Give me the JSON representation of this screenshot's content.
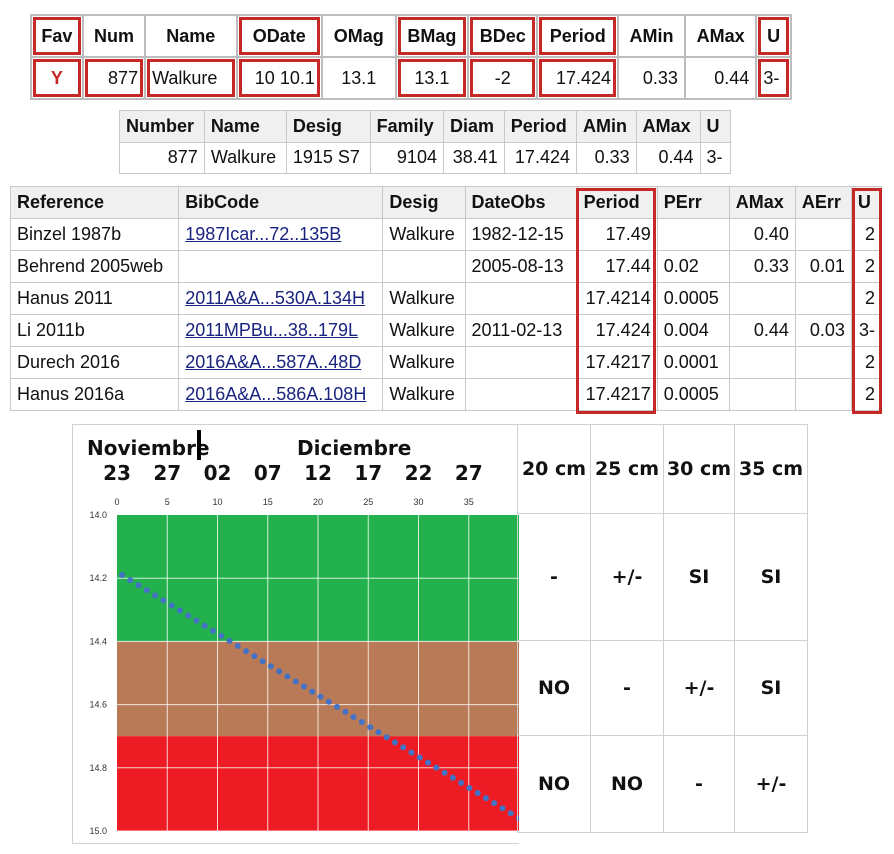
{
  "summary": {
    "headers": [
      "Fav",
      "Num",
      "Name",
      "ODate",
      "OMag",
      "BMag",
      "BDec",
      "Period",
      "AMin",
      "AMax",
      "U"
    ],
    "row": [
      "Y",
      "877",
      "Walkure",
      "10 10.1",
      "13.1",
      "13.1",
      "-2",
      "17.424",
      "0.33",
      "0.44",
      "3-"
    ]
  },
  "asteroid": {
    "headers": [
      "Number",
      "Name",
      "Desig",
      "Family",
      "Diam",
      "Period",
      "AMin",
      "AMax",
      "U"
    ],
    "row": [
      "877",
      "Walkure",
      "1915 S7",
      "9104",
      "38.41",
      "17.424",
      "0.33",
      "0.44",
      "3-"
    ]
  },
  "references": {
    "headers": [
      "Reference",
      "BibCode",
      "Desig",
      "DateObs",
      "Period",
      "PErr",
      "AMax",
      "AErr",
      "U"
    ],
    "rows": [
      [
        "Binzel 1987b",
        "1987Icar...72..135B",
        "Walkure",
        "1982-12-15",
        "17.49",
        "",
        "0.40",
        "",
        "2"
      ],
      [
        "Behrend 2005web",
        "",
        "",
        "2005-08-13",
        "17.44",
        "0.02",
        "0.33",
        "0.01",
        "2"
      ],
      [
        "Hanus 2011",
        "2011A&A...530A.134H",
        "Walkure",
        "",
        "17.4214",
        "0.0005",
        "",
        "",
        "2"
      ],
      [
        "Li 2011b",
        "2011MPBu...38..179L",
        "Walkure",
        "2011-02-13",
        "17.424",
        "0.004",
        "0.44",
        "0.03",
        "3-"
      ],
      [
        "Durech 2016",
        "2016A&A...587A..48D",
        "Walkure",
        "",
        "17.4217",
        "0.0001",
        "",
        "",
        "2"
      ],
      [
        "Hanus 2016a",
        "2016A&A...586A.108H",
        "Walkure",
        "",
        "17.4217",
        "0.0005",
        "",
        "",
        "2"
      ]
    ]
  },
  "visibility": {
    "months": [
      "Noviembre",
      "Diciembre"
    ],
    "dates": [
      "23",
      "27",
      "02",
      "07",
      "12",
      "17",
      "22",
      "27"
    ],
    "apertures": [
      "20 cm",
      "25 cm",
      "30 cm",
      "35 cm"
    ],
    "rows": [
      [
        "-",
        "+/-",
        "SI",
        "SI"
      ],
      [
        "NO",
        "-",
        "+/-",
        "SI"
      ],
      [
        "NO",
        "NO",
        "-",
        "+/-"
      ]
    ]
  },
  "chart_data": {
    "type": "scatter",
    "xlim": [
      0,
      40
    ],
    "ylim": [
      14.0,
      15.0
    ],
    "xticks": [
      "0",
      "5",
      "10",
      "15",
      "20",
      "25",
      "30",
      "35"
    ],
    "yticks": [
      "14.0",
      "14.2",
      "14.4",
      "14.6",
      "14.8",
      "15.0"
    ],
    "zones": [
      {
        "from": 14.0,
        "to": 14.4,
        "color": "#22b14c"
      },
      {
        "from": 14.4,
        "to": 14.7,
        "color": "#b97a57"
      },
      {
        "from": 14.7,
        "to": 15.0,
        "color": "#ed1c24"
      }
    ],
    "series": [
      {
        "color": "#4472c4",
        "x_start": 0.5,
        "x_end": 40,
        "y_start": 14.19,
        "y_end": 14.96,
        "count": 49
      }
    ]
  }
}
